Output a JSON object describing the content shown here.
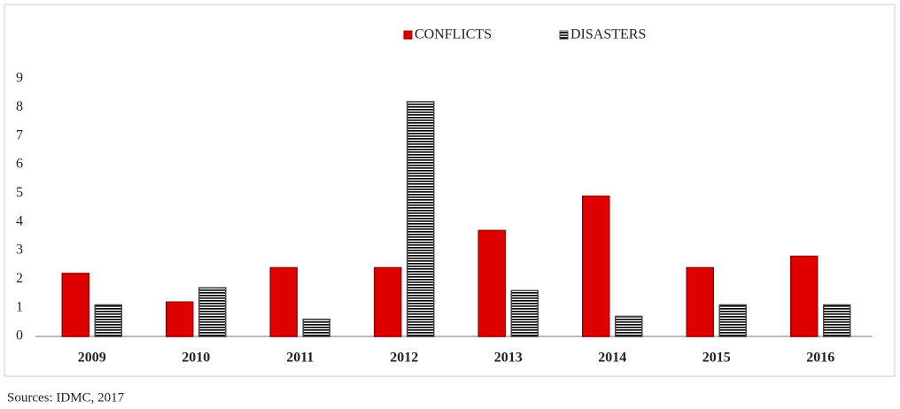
{
  "chart_data": {
    "type": "bar",
    "categories": [
      "2009",
      "2010",
      "2011",
      "2012",
      "2013",
      "2014",
      "2015",
      "2016"
    ],
    "series": [
      {
        "name": "CONFLICTS",
        "color": "#e00000",
        "values": [
          2.2,
          1.2,
          2.4,
          2.4,
          3.7,
          4.9,
          2.4,
          2.8
        ]
      },
      {
        "name": "DISASTERS",
        "color": "#000000",
        "values": [
          1.1,
          1.7,
          0.6,
          8.2,
          1.6,
          0.7,
          1.1,
          1.1
        ]
      }
    ],
    "ylim": [
      0,
      9
    ],
    "yticks": [
      0,
      1,
      2,
      3,
      4,
      5,
      6,
      7,
      8,
      9
    ],
    "grid": false,
    "legend": "top",
    "source": "Sources: IDMC, 2017"
  }
}
